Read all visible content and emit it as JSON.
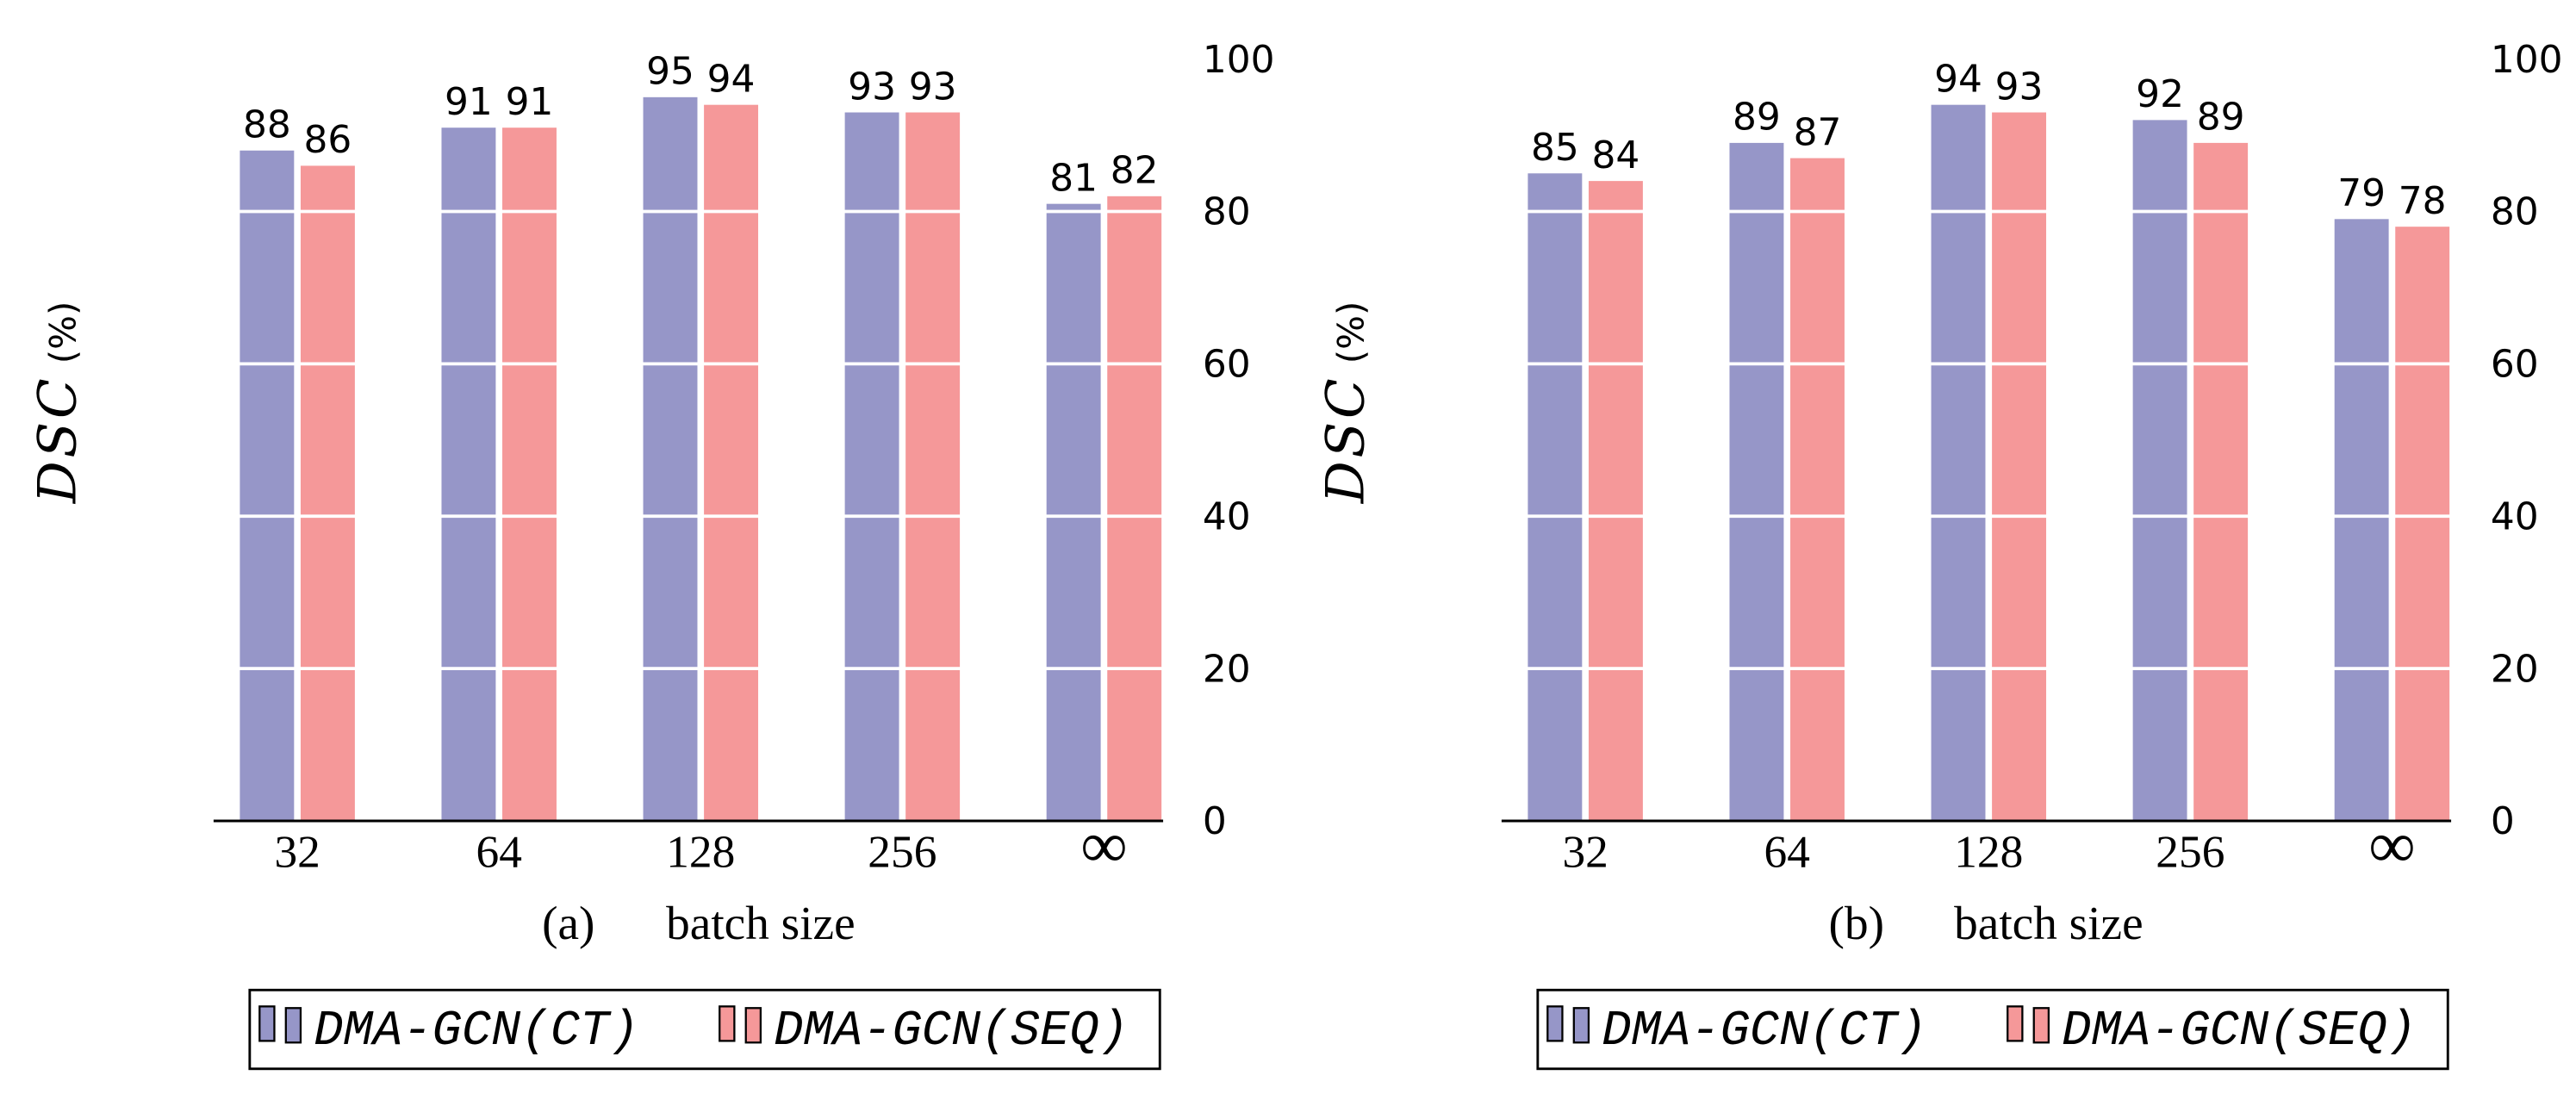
{
  "chart_data": [
    {
      "type": "bar",
      "panel": "(a)",
      "categories": [
        "32",
        "64",
        "128",
        "256",
        "∞"
      ],
      "series": [
        {
          "name": "DMA-GCN(CT)",
          "color": "#9696c8",
          "values": [
            88,
            91,
            95,
            93,
            81
          ]
        },
        {
          "name": "DMA-GCN(SEQ)",
          "color": "#f59899",
          "values": [
            86,
            91,
            94,
            93,
            82
          ]
        }
      ],
      "xlabel": "batch size",
      "ylabel": "DSC (%)",
      "ylim": [
        0,
        100
      ],
      "yticks": [
        0,
        20,
        40,
        60,
        80,
        100
      ],
      "grid": true,
      "grid_color": "#ffffff",
      "axis_color": "#000000",
      "legend_position": "bottom",
      "data_labels": true
    },
    {
      "type": "bar",
      "panel": "(b)",
      "categories": [
        "32",
        "64",
        "128",
        "256",
        "∞"
      ],
      "series": [
        {
          "name": "DMA-GCN(CT)",
          "color": "#9696c8",
          "values": [
            85,
            89,
            94,
            92,
            79
          ]
        },
        {
          "name": "DMA-GCN(SEQ)",
          "color": "#f59899",
          "values": [
            84,
            87,
            93,
            89,
            78
          ]
        }
      ],
      "xlabel": "batch size",
      "ylabel": "DSC (%)",
      "ylim": [
        0,
        100
      ],
      "yticks": [
        0,
        20,
        40,
        60,
        80,
        100
      ],
      "grid": true,
      "grid_color": "#ffffff",
      "axis_color": "#000000",
      "legend_position": "bottom",
      "data_labels": true
    }
  ]
}
